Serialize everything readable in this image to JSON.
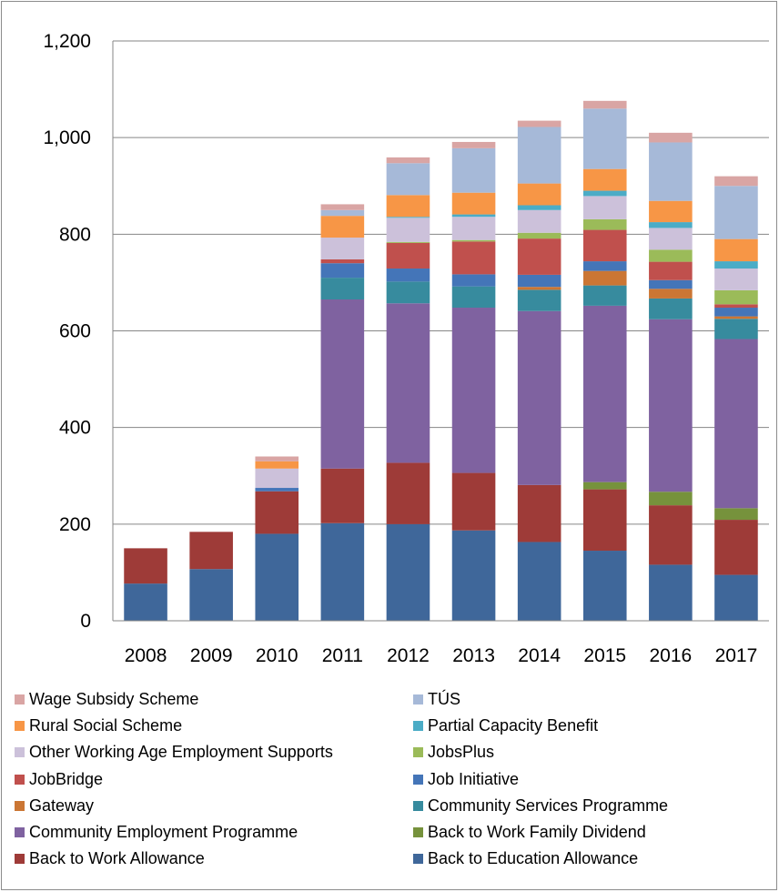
{
  "chart_data": {
    "type": "bar",
    "stacked": true,
    "categories": [
      "2008",
      "2009",
      "2010",
      "2011",
      "2012",
      "2013",
      "2014",
      "2015",
      "2016",
      "2017"
    ],
    "ylim": [
      0,
      1200
    ],
    "yticks": [
      0,
      200,
      400,
      600,
      800,
      1000,
      1200
    ],
    "ytick_labels": [
      "0",
      "200",
      "400",
      "600",
      "800",
      "1,000",
      "1,200"
    ],
    "grid": "horizontal",
    "legend_position": "bottom",
    "series": [
      {
        "name": "Back to Education Allowance",
        "color": "#3F679A",
        "values": [
          77,
          107,
          180,
          202,
          200,
          187,
          163,
          145,
          116,
          95
        ]
      },
      {
        "name": "Back to Work Allowance",
        "color": "#9E3B38",
        "values": [
          73,
          77,
          88,
          113,
          127,
          119,
          118,
          127,
          123,
          114
        ]
      },
      {
        "name": "Back to Work Family Dividend",
        "color": "#76923C",
        "values": [
          0,
          0,
          0,
          0,
          0,
          0,
          0,
          15,
          28,
          24
        ]
      },
      {
        "name": "Community Employment Programme",
        "color": "#7F62A0",
        "values": [
          0,
          0,
          0,
          350,
          330,
          342,
          360,
          365,
          357,
          350
        ]
      },
      {
        "name": "Community Services Programme",
        "color": "#378B9E",
        "values": [
          0,
          0,
          0,
          45,
          45,
          44,
          44,
          42,
          43,
          42
        ]
      },
      {
        "name": "Gateway",
        "color": "#CB7634",
        "values": [
          0,
          0,
          0,
          0,
          0,
          0,
          6,
          30,
          20,
          5
        ]
      },
      {
        "name": "Job Initiative",
        "color": "#4475B8",
        "values": [
          0,
          0,
          7,
          30,
          27,
          25,
          25,
          20,
          18,
          18
        ]
      },
      {
        "name": "JobBridge",
        "color": "#C0504D",
        "values": [
          0,
          0,
          0,
          8,
          53,
          68,
          75,
          65,
          38,
          7
        ]
      },
      {
        "name": "JobsPlus",
        "color": "#9BBB59",
        "values": [
          0,
          0,
          0,
          0,
          2,
          3,
          12,
          22,
          25,
          29
        ]
      },
      {
        "name": "Other Working Age Employment Supports",
        "color": "#CCC1DA",
        "values": [
          0,
          0,
          40,
          45,
          50,
          48,
          47,
          48,
          45,
          45
        ]
      },
      {
        "name": "Partial Capacity Benefit",
        "color": "#4BACC6",
        "values": [
          0,
          0,
          0,
          0,
          2,
          5,
          10,
          11,
          12,
          15
        ]
      },
      {
        "name": "Rural Social Scheme",
        "color": "#F79646",
        "values": [
          0,
          0,
          15,
          45,
          45,
          45,
          45,
          45,
          44,
          46
        ]
      },
      {
        "name": "TÚS",
        "color": "#A6B9D8",
        "values": [
          0,
          0,
          0,
          12,
          66,
          92,
          117,
          125,
          121,
          110
        ]
      },
      {
        "name": "Wage Subsidy Scheme",
        "color": "#D9A5A4",
        "values": [
          0,
          0,
          10,
          12,
          12,
          13,
          13,
          16,
          20,
          20
        ]
      }
    ],
    "legend_order": [
      "Wage Subsidy Scheme",
      "TÚS",
      "Rural Social Scheme",
      "Partial Capacity Benefit",
      "Other Working Age Employment Supports",
      "JobsPlus",
      "JobBridge",
      "Job Initiative",
      "Gateway",
      "Community Services Programme",
      "Community Employment Programme",
      "Back to Work Family Dividend",
      "Back to Work Allowance",
      "Back to Education Allowance"
    ]
  }
}
